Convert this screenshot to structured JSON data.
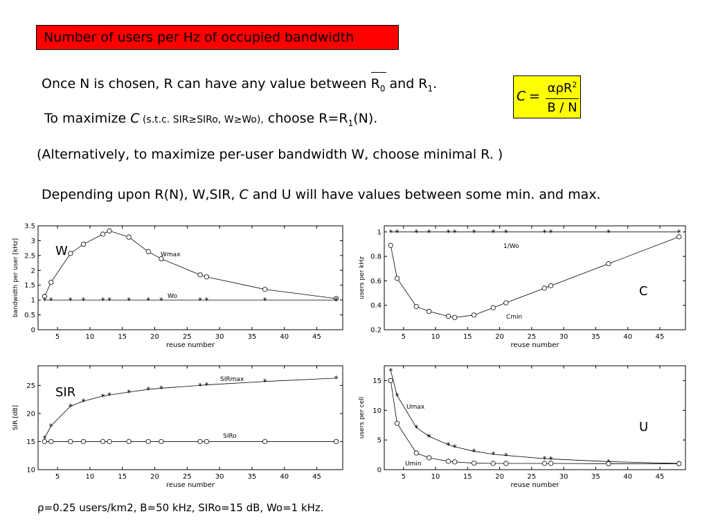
{
  "title": "Number of users per Hz of occupied bandwidth",
  "text": {
    "line1_a": "Once N is chosen, R can have any value between ",
    "line1_r": "R",
    "line1_r_sub": "0",
    "line1_b": " and R",
    "line1_b_sub": "1",
    "line1_end": ".",
    "line2_a": "To maximize ",
    "line2_c": "C",
    "line2_small": " (s.t.c. SIR≥SIRo, W≥Wo),",
    "line2_b": " choose R=R",
    "line2_b_sub": "1",
    "line2_end": "(N).",
    "line3": "(Alternatively, to maximize per-user bandwidth W, choose minimal R. )",
    "line4_a": "Depending upon R(N),  W,SIR, ",
    "line4_c": "C",
    "line4_b": " and U will have values between some min. and max."
  },
  "formula": {
    "lhs": "C",
    "eq": "=",
    "numerator": "αρR",
    "numerator_sup": "2",
    "denominator": "B / N"
  },
  "footer": "ρ=0.25 users/km2, B=50 kHz, SIRo=15 dB, Wo=1 kHz.",
  "chart_data": [
    {
      "type": "line",
      "big_label": "W",
      "xlabel": "reuse number",
      "ylabel": "bandwidth per user [kHz]",
      "xlim": [
        2,
        49
      ],
      "ylim": [
        0,
        3.5
      ],
      "xticks": [
        5,
        10,
        15,
        20,
        25,
        30,
        35,
        40,
        45
      ],
      "yticks": [
        0,
        0.5,
        1,
        1.5,
        2,
        2.5,
        3,
        3.5
      ],
      "series": [
        {
          "name": "Wmax",
          "marker": "circle",
          "x": [
            3,
            4,
            7,
            9,
            12,
            13,
            16,
            19,
            21,
            27,
            28,
            37,
            48
          ],
          "y": [
            1.12,
            1.6,
            2.57,
            2.88,
            3.22,
            3.33,
            3.12,
            2.63,
            2.39,
            1.85,
            1.78,
            1.36,
            1.05
          ]
        },
        {
          "name": "Wo",
          "marker": "star",
          "x": [
            3,
            4,
            7,
            9,
            12,
            13,
            16,
            19,
            21,
            27,
            28,
            37,
            48
          ],
          "y": [
            1,
            1,
            1,
            1,
            1,
            1,
            1,
            1,
            1,
            1,
            1,
            1,
            1
          ]
        }
      ]
    },
    {
      "type": "line",
      "big_label": "C",
      "xlabel": "reuse number",
      "ylabel": "users per kHz",
      "xlim": [
        2,
        49
      ],
      "ylim": [
        0.2,
        1.05
      ],
      "xticks": [
        5,
        10,
        15,
        20,
        25,
        30,
        35,
        40,
        45
      ],
      "yticks": [
        0.2,
        0.4,
        0.6,
        0.8,
        1
      ],
      "series": [
        {
          "name": "1/Wo",
          "marker": "star",
          "x": [
            3,
            4,
            7,
            9,
            12,
            13,
            16,
            19,
            21,
            27,
            28,
            37,
            48
          ],
          "y": [
            1,
            1,
            1,
            1,
            1,
            1,
            1,
            1,
            1,
            1,
            1,
            1,
            1
          ]
        },
        {
          "name": "Cmin",
          "marker": "circle",
          "x": [
            3,
            4,
            7,
            9,
            12,
            13,
            16,
            19,
            21,
            27,
            28,
            37,
            48
          ],
          "y": [
            0.89,
            0.62,
            0.39,
            0.35,
            0.31,
            0.3,
            0.32,
            0.38,
            0.42,
            0.54,
            0.56,
            0.74,
            0.96
          ]
        }
      ]
    },
    {
      "type": "line",
      "big_label": "SIR",
      "xlabel": "reuse number",
      "ylabel": "SIR [dB]",
      "xlim": [
        2,
        49
      ],
      "ylim": [
        10,
        28.5
      ],
      "xticks": [
        5,
        10,
        15,
        20,
        25,
        30,
        35,
        40,
        45
      ],
      "yticks": [
        10,
        15,
        20,
        25
      ],
      "series": [
        {
          "name": "SIRmax",
          "marker": "star",
          "x": [
            3,
            4,
            7,
            9,
            12,
            13,
            16,
            19,
            21,
            27,
            28,
            37,
            48
          ],
          "y": [
            15.6,
            17.8,
            21.3,
            22.2,
            23.1,
            23.3,
            23.8,
            24.3,
            24.5,
            25,
            25.1,
            25.7,
            26.3
          ]
        },
        {
          "name": "SIRo",
          "marker": "circle",
          "x": [
            3,
            4,
            7,
            9,
            12,
            13,
            16,
            19,
            21,
            27,
            28,
            37,
            48
          ],
          "y": [
            15,
            15,
            15,
            15,
            15,
            15,
            15,
            15,
            15,
            15,
            15,
            15,
            15
          ]
        }
      ]
    },
    {
      "type": "line",
      "big_label": "U",
      "xlabel": "reuse number",
      "ylabel": "users per cell",
      "xlim": [
        2,
        49
      ],
      "ylim": [
        0,
        17.5
      ],
      "xticks": [
        5,
        10,
        15,
        20,
        25,
        30,
        35,
        40,
        45
      ],
      "yticks": [
        0,
        5,
        10,
        15
      ],
      "series": [
        {
          "name": "Umax",
          "marker": "star",
          "x": [
            3,
            4,
            7,
            9,
            12,
            13,
            16,
            19,
            21,
            27,
            28,
            37,
            48
          ],
          "y": [
            16.7,
            12.5,
            7.1,
            5.6,
            4.2,
            3.85,
            3.1,
            2.6,
            2.4,
            1.85,
            1.8,
            1.35,
            1.05
          ]
        },
        {
          "name": "Umin",
          "marker": "circle",
          "x": [
            3,
            4,
            7,
            9,
            12,
            13,
            16,
            19,
            21,
            27,
            28,
            37,
            48
          ],
          "y": [
            15,
            7.8,
            2.8,
            2.0,
            1.4,
            1.3,
            1.1,
            1.05,
            1.05,
            1.05,
            1.05,
            1.0,
            1.0
          ]
        }
      ]
    }
  ]
}
